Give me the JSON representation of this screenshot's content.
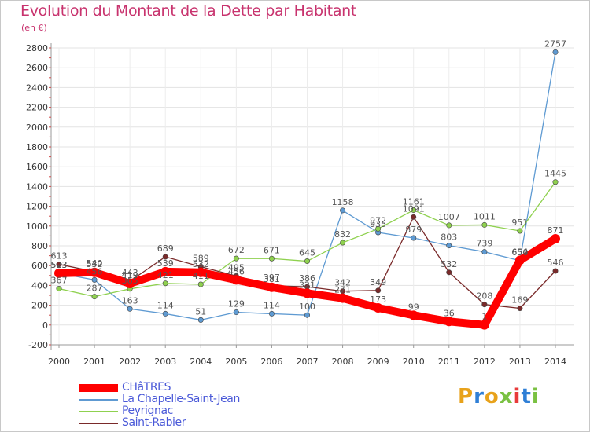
{
  "title": "Evolution du Montant de la Dette par Habitant",
  "subtitle": "(en €)",
  "logo": "Proxiti",
  "chart_data": {
    "type": "line",
    "title": "Evolution du Montant de la Dette par Habitant",
    "ylabel": "(en €)",
    "x": [
      2000,
      2001,
      2002,
      2003,
      2004,
      2005,
      2006,
      2007,
      2008,
      2009,
      2010,
      2011,
      2012,
      2013,
      2014
    ],
    "ylim": [
      -200,
      2800
    ],
    "yticks": [
      -200,
      0,
      200,
      400,
      600,
      800,
      1000,
      1200,
      1400,
      1600,
      1800,
      2000,
      2200,
      2400,
      2600,
      2800
    ],
    "grid": true,
    "legend": "bottom-left",
    "series": [
      {
        "name": "CHâTRES",
        "color": "#ff0000",
        "values": [
          523,
          532,
          419,
          539,
          532,
          456,
          381,
          321,
          271,
          173,
          99,
          36,
          1,
          654,
          871
        ]
      },
      {
        "name": "La Chapelle-Saint-Jean",
        "color": "#5e9ad2",
        "values": [
          523,
          456,
          163,
          114,
          51,
          129,
          114,
          100,
          1158,
          935,
          879,
          803,
          739,
          650,
          2757
        ]
      },
      {
        "name": "Peyrignac",
        "color": "#8fd14f",
        "values": [
          367,
          287,
          365,
          421,
          411,
          672,
          671,
          645,
          832,
          972,
          1161,
          1007,
          1011,
          951,
          1445
        ]
      },
      {
        "name": "Saint-Rabier",
        "color": "#7a2a2a",
        "values": [
          613,
          540,
          443,
          689,
          589,
          495,
          397,
          386,
          342,
          349,
          1091,
          532,
          208,
          169,
          546
        ]
      }
    ]
  }
}
